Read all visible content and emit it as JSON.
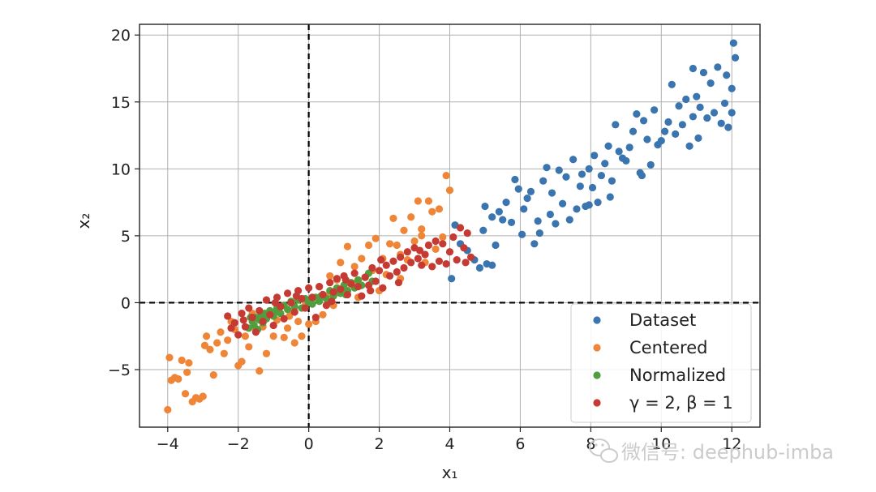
{
  "chart_data": {
    "type": "scatter",
    "title": "",
    "xlabel": "x₁",
    "ylabel": "x₂",
    "xlim": [
      -4.8,
      12.8
    ],
    "ylim": [
      -9.3,
      20.8
    ],
    "xticks": [
      -4,
      -2,
      0,
      2,
      4,
      6,
      8,
      10,
      12
    ],
    "yticks": [
      -5,
      0,
      5,
      10,
      15,
      20
    ],
    "grid": true,
    "legend_position": "lower-right",
    "reference_lines": [
      {
        "orientation": "vertical",
        "value": 0,
        "style": "dashed",
        "color": "#000000"
      },
      {
        "orientation": "horizontal",
        "value": 0,
        "style": "dashed",
        "color": "#000000"
      }
    ],
    "series": [
      {
        "name": "Dataset",
        "color": "#3b75af",
        "points": [
          [
            4.05,
            1.8
          ],
          [
            4.15,
            5.8
          ],
          [
            4.3,
            4.4
          ],
          [
            4.5,
            3.9
          ],
          [
            4.7,
            3.2
          ],
          [
            4.85,
            2.6
          ],
          [
            4.95,
            5.4
          ],
          [
            5.05,
            2.9
          ],
          [
            5.2,
            2.8
          ],
          [
            5.3,
            4.3
          ],
          [
            5.0,
            7.2
          ],
          [
            5.2,
            6.4
          ],
          [
            5.4,
            6.8
          ],
          [
            5.5,
            6.2
          ],
          [
            5.6,
            7.5
          ],
          [
            5.75,
            6.0
          ],
          [
            5.85,
            9.2
          ],
          [
            5.95,
            8.5
          ],
          [
            6.05,
            5.1
          ],
          [
            6.1,
            7.0
          ],
          [
            6.2,
            7.8
          ],
          [
            6.3,
            8.3
          ],
          [
            6.4,
            4.4
          ],
          [
            6.5,
            6.1
          ],
          [
            6.55,
            5.2
          ],
          [
            6.65,
            9.1
          ],
          [
            6.75,
            10.1
          ],
          [
            6.85,
            6.6
          ],
          [
            6.9,
            8.2
          ],
          [
            7.0,
            5.9
          ],
          [
            7.1,
            9.9
          ],
          [
            7.2,
            7.4
          ],
          [
            7.3,
            9.4
          ],
          [
            7.4,
            6.2
          ],
          [
            7.5,
            10.7
          ],
          [
            7.6,
            7.0
          ],
          [
            7.7,
            8.7
          ],
          [
            7.75,
            9.6
          ],
          [
            7.85,
            7.2
          ],
          [
            7.95,
            10.0
          ],
          [
            8.05,
            8.6
          ],
          [
            8.1,
            11.0
          ],
          [
            8.2,
            7.5
          ],
          [
            8.3,
            9.5
          ],
          [
            8.4,
            10.4
          ],
          [
            8.5,
            11.7
          ],
          [
            8.6,
            9.1
          ],
          [
            8.7,
            13.3
          ],
          [
            8.8,
            11.3
          ],
          [
            8.9,
            10.8
          ],
          [
            9.0,
            10.6
          ],
          [
            9.1,
            11.6
          ],
          [
            9.2,
            12.8
          ],
          [
            9.3,
            14.1
          ],
          [
            9.4,
            9.7
          ],
          [
            9.5,
            13.6
          ],
          [
            9.6,
            12.2
          ],
          [
            9.7,
            10.3
          ],
          [
            9.8,
            14.4
          ],
          [
            9.9,
            11.8
          ],
          [
            10.0,
            12.1
          ],
          [
            10.1,
            12.8
          ],
          [
            10.2,
            13.5
          ],
          [
            10.3,
            16.3
          ],
          [
            10.4,
            12.6
          ],
          [
            10.5,
            14.7
          ],
          [
            10.6,
            13.3
          ],
          [
            10.7,
            15.2
          ],
          [
            10.8,
            11.7
          ],
          [
            10.9,
            13.9
          ],
          [
            11.0,
            15.4
          ],
          [
            11.05,
            12.3
          ],
          [
            11.1,
            14.6
          ],
          [
            11.2,
            17.2
          ],
          [
            11.3,
            13.8
          ],
          [
            11.4,
            16.4
          ],
          [
            11.5,
            14.2
          ],
          [
            11.6,
            17.6
          ],
          [
            11.7,
            13.4
          ],
          [
            11.8,
            14.9
          ],
          [
            11.85,
            17.0
          ],
          [
            11.9,
            13.1
          ],
          [
            12.0,
            14.2
          ],
          [
            12.05,
            19.4
          ],
          [
            12.1,
            18.3
          ],
          [
            12.0,
            16.0
          ],
          [
            10.9,
            17.5
          ],
          [
            9.45,
            9.5
          ],
          [
            8.55,
            7.9
          ],
          [
            7.95,
            7.3
          ]
        ]
      },
      {
        "name": "Centered",
        "color": "#ef8536",
        "points": [
          [
            -4.0,
            -8.0
          ],
          [
            -3.95,
            -4.1
          ],
          [
            -3.9,
            -5.8
          ],
          [
            -3.8,
            -5.6
          ],
          [
            -3.7,
            -5.7
          ],
          [
            -3.6,
            -4.3
          ],
          [
            -3.5,
            -6.8
          ],
          [
            -3.4,
            -4.5
          ],
          [
            -3.3,
            -7.4
          ],
          [
            -3.2,
            -7.1
          ],
          [
            -3.1,
            -7.2
          ],
          [
            -3.0,
            -7.0
          ],
          [
            -2.9,
            -2.5
          ],
          [
            -2.8,
            -3.5
          ],
          [
            -2.7,
            -5.4
          ],
          [
            -2.6,
            -3.0
          ],
          [
            -2.5,
            -2.2
          ],
          [
            -2.4,
            -3.8
          ],
          [
            -2.3,
            -2.8
          ],
          [
            -2.2,
            -1.4
          ],
          [
            -2.1,
            -2.0
          ],
          [
            -2.0,
            -4.7
          ],
          [
            -1.9,
            -4.4
          ],
          [
            -1.8,
            -2.5
          ],
          [
            -1.7,
            -3.3
          ],
          [
            -1.6,
            -0.8
          ],
          [
            -1.5,
            -2.1
          ],
          [
            -1.4,
            -5.1
          ],
          [
            -1.3,
            -1.8
          ],
          [
            -1.2,
            -3.8
          ],
          [
            -1.1,
            -0.8
          ],
          [
            -1.0,
            -2.5
          ],
          [
            -0.9,
            -1.3
          ],
          [
            -0.8,
            -0.3
          ],
          [
            -0.7,
            -2.6
          ],
          [
            -0.6,
            -1.9
          ],
          [
            -0.5,
            -0.7
          ],
          [
            -0.4,
            -3.0
          ],
          [
            -0.3,
            -1.4
          ],
          [
            -0.2,
            -2.5
          ],
          [
            -0.1,
            -0.2
          ],
          [
            0.0,
            -1.6
          ],
          [
            0.1,
            0.3
          ],
          [
            0.2,
            -1.4
          ],
          [
            0.3,
            1.2
          ],
          [
            0.4,
            -0.9
          ],
          [
            0.5,
            0.5
          ],
          [
            0.6,
            2.0
          ],
          [
            0.7,
            -0.2
          ],
          [
            0.8,
            1.7
          ],
          [
            0.9,
            3.0
          ],
          [
            1.0,
            0.9
          ],
          [
            1.1,
            4.2
          ],
          [
            1.2,
            1.5
          ],
          [
            1.3,
            2.7
          ],
          [
            1.4,
            0.4
          ],
          [
            1.5,
            3.3
          ],
          [
            1.6,
            1.9
          ],
          [
            1.7,
            4.3
          ],
          [
            1.8,
            2.4
          ],
          [
            1.9,
            4.8
          ],
          [
            2.0,
            0.9
          ],
          [
            2.1,
            3.3
          ],
          [
            2.2,
            2.1
          ],
          [
            2.3,
            4.4
          ],
          [
            2.4,
            6.3
          ],
          [
            2.5,
            4.3
          ],
          [
            2.6,
            1.8
          ],
          [
            2.7,
            5.4
          ],
          [
            2.8,
            3.2
          ],
          [
            2.9,
            6.4
          ],
          [
            3.0,
            4.6
          ],
          [
            3.1,
            7.6
          ],
          [
            3.2,
            5.0
          ],
          [
            3.3,
            3.0
          ],
          [
            3.4,
            7.6
          ],
          [
            3.5,
            6.8
          ],
          [
            3.6,
            4.0
          ],
          [
            3.7,
            7.0
          ],
          [
            3.8,
            4.9
          ],
          [
            3.9,
            9.5
          ],
          [
            4.0,
            8.4
          ],
          [
            3.2,
            5.5
          ],
          [
            2.6,
            3.6
          ],
          [
            1.35,
            1.5
          ],
          [
            -0.55,
            -1.0
          ],
          [
            -1.6,
            -1.2
          ],
          [
            -2.95,
            -3.2
          ],
          [
            -3.45,
            -5.2
          ],
          [
            0.75,
            0.7
          ]
        ]
      },
      {
        "name": "Normalized",
        "color": "#519e3e",
        "points": [
          [
            -1.7,
            -1.9
          ],
          [
            -1.6,
            -1.4
          ],
          [
            -1.55,
            -1.7
          ],
          [
            -1.5,
            -1.1
          ],
          [
            -1.45,
            -2.0
          ],
          [
            -1.4,
            -1.3
          ],
          [
            -1.35,
            -0.9
          ],
          [
            -1.3,
            -1.5
          ],
          [
            -1.25,
            -0.8
          ],
          [
            -1.2,
            -1.2
          ],
          [
            -1.1,
            -0.6
          ],
          [
            -1.0,
            -1.0
          ],
          [
            -0.9,
            -0.4
          ],
          [
            -0.8,
            -0.8
          ],
          [
            -0.7,
            -0.2
          ],
          [
            -0.6,
            -0.5
          ],
          [
            -0.5,
            0.1
          ],
          [
            -0.4,
            -0.3
          ],
          [
            -0.3,
            0.2
          ],
          [
            -0.2,
            -0.4
          ],
          [
            -0.1,
            0.3
          ],
          [
            0.0,
            0.0
          ],
          [
            0.1,
            -0.1
          ],
          [
            0.2,
            0.4
          ],
          [
            0.3,
            0.1
          ],
          [
            0.4,
            0.6
          ],
          [
            0.5,
            0.3
          ],
          [
            0.6,
            0.9
          ],
          [
            0.7,
            0.5
          ],
          [
            0.8,
            1.1
          ],
          [
            0.9,
            0.7
          ],
          [
            1.0,
            1.3
          ],
          [
            1.1,
            0.9
          ],
          [
            1.2,
            1.5
          ],
          [
            1.3,
            1.1
          ],
          [
            1.4,
            1.7
          ],
          [
            1.5,
            1.3
          ],
          [
            1.6,
            1.9
          ],
          [
            1.7,
            2.2
          ],
          [
            1.8,
            1.6
          ],
          [
            -1.65,
            -1.1
          ],
          [
            -0.95,
            -0.7
          ],
          [
            0.35,
            0.5
          ],
          [
            1.05,
            0.6
          ],
          [
            0.55,
            0.0
          ]
        ]
      },
      {
        "name": "γ = 2, β = 1",
        "color": "#c53a32",
        "points": [
          [
            -2.3,
            -1.0
          ],
          [
            -2.2,
            -1.9
          ],
          [
            -2.1,
            -1.5
          ],
          [
            -2.0,
            -2.4
          ],
          [
            -1.9,
            -0.8
          ],
          [
            -1.8,
            -1.8
          ],
          [
            -1.7,
            -0.4
          ],
          [
            -1.6,
            -1.1
          ],
          [
            -1.5,
            -2.2
          ],
          [
            -1.4,
            -0.6
          ],
          [
            -1.3,
            -1.4
          ],
          [
            -1.2,
            0.2
          ],
          [
            -1.1,
            -0.9
          ],
          [
            -1.0,
            -1.7
          ],
          [
            -0.9,
            0.4
          ],
          [
            -0.8,
            -0.3
          ],
          [
            -0.7,
            -1.2
          ],
          [
            -0.6,
            0.7
          ],
          [
            -0.5,
            0.0
          ],
          [
            -0.4,
            -0.7
          ],
          [
            -0.3,
            0.9
          ],
          [
            -0.2,
            0.3
          ],
          [
            -0.1,
            -0.4
          ],
          [
            0.0,
            1.1
          ],
          [
            0.1,
            0.4
          ],
          [
            0.2,
            -1.1
          ],
          [
            0.3,
            1.2
          ],
          [
            0.4,
            0.6
          ],
          [
            0.5,
            -0.2
          ],
          [
            0.6,
            1.5
          ],
          [
            0.7,
            0.8
          ],
          [
            0.8,
            1.8
          ],
          [
            0.9,
            1.0
          ],
          [
            1.0,
            2.0
          ],
          [
            1.1,
            0.6
          ],
          [
            1.2,
            1.4
          ],
          [
            1.3,
            2.2
          ],
          [
            1.4,
            1.2
          ],
          [
            1.5,
            0.5
          ],
          [
            1.6,
            1.9
          ],
          [
            1.7,
            1.3
          ],
          [
            1.8,
            2.6
          ],
          [
            1.9,
            1.6
          ],
          [
            2.0,
            2.4
          ],
          [
            2.1,
            1.1
          ],
          [
            2.2,
            2.8
          ],
          [
            2.3,
            2.0
          ],
          [
            2.4,
            3.1
          ],
          [
            2.5,
            2.3
          ],
          [
            2.6,
            3.4
          ],
          [
            2.7,
            2.6
          ],
          [
            2.8,
            3.8
          ],
          [
            2.9,
            3.0
          ],
          [
            3.0,
            4.1
          ],
          [
            3.1,
            3.3
          ],
          [
            3.2,
            2.8
          ],
          [
            3.3,
            3.6
          ],
          [
            3.4,
            4.3
          ],
          [
            3.5,
            2.7
          ],
          [
            3.6,
            4.6
          ],
          [
            3.7,
            3.1
          ],
          [
            3.8,
            4.4
          ],
          [
            3.9,
            2.9
          ],
          [
            4.0,
            3.8
          ],
          [
            4.1,
            4.9
          ],
          [
            4.2,
            3.2
          ],
          [
            4.3,
            5.6
          ],
          [
            4.4,
            4.1
          ],
          [
            4.5,
            5.2
          ],
          [
            4.6,
            3.4
          ],
          [
            4.45,
            3.0
          ],
          [
            2.55,
            1.5
          ],
          [
            1.05,
            1.7
          ],
          [
            -0.35,
            0.5
          ],
          [
            -1.85,
            -1.3
          ],
          [
            0.65,
            0.1
          ],
          [
            3.15,
            3.9
          ],
          [
            2.05,
            3.2
          ],
          [
            -0.95,
            0.0
          ],
          [
            1.75,
            0.9
          ]
        ]
      }
    ]
  },
  "watermark": {
    "icon": "wechat-icon",
    "text": "微信号: deephub-imba"
  }
}
